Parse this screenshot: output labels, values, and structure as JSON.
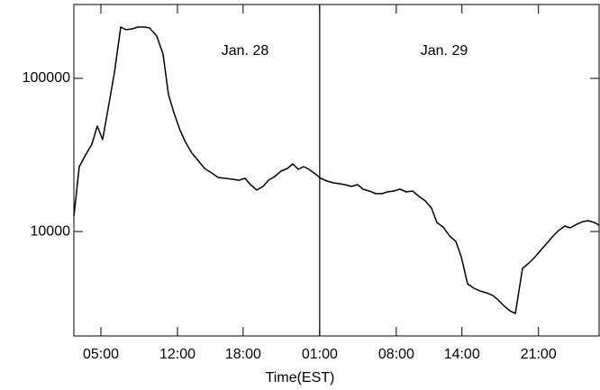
{
  "chart_data": {
    "type": "line",
    "xlabel": "Time(EST)",
    "annotations": [
      "Jan. 28",
      "Jan. 29"
    ],
    "divider_x": 25,
    "log_y": true,
    "xlim": [
      2.53,
      50.54
    ],
    "ylim": [
      2080,
      303700
    ],
    "xticks": [
      {
        "value": 5,
        "label": "05:00"
      },
      {
        "value": 12,
        "label": "12:00"
      },
      {
        "value": 18,
        "label": "18:00"
      },
      {
        "value": 25,
        "label": "01:00"
      },
      {
        "value": 32,
        "label": "08:00"
      },
      {
        "value": 38,
        "label": "14:00"
      },
      {
        "value": 45,
        "label": "21:00"
      }
    ],
    "yticks": [
      10000,
      100000
    ],
    "x": [
      2.53,
      3.02,
      3.6,
      4.18,
      4.67,
      5.16,
      5.74,
      6.24,
      6.81,
      7.31,
      7.88,
      8.38,
      8.95,
      9.45,
      10.11,
      10.68,
      11.18,
      11.67,
      12.25,
      12.74,
      13.32,
      13.89,
      14.47,
      15.13,
      15.71,
      16.36,
      17.02,
      17.6,
      18.18,
      18.67,
      19.25,
      19.82,
      20.32,
      20.89,
      21.47,
      22.05,
      22.54,
      23.04,
      23.53,
      24.02,
      24.6,
      25.09,
      25.67,
      26.25,
      26.82,
      27.32,
      27.89,
      28.47,
      28.96,
      29.54,
      30.12,
      30.69,
      31.19,
      31.76,
      32.34,
      32.92,
      33.49,
      34.07,
      34.65,
      35.22,
      35.72,
      36.29,
      36.87,
      37.45,
      37.94,
      38.52,
      39.09,
      39.67,
      40.25,
      40.82,
      41.32,
      41.89,
      42.39,
      42.88,
      43.54,
      44.12,
      44.69,
      45.19,
      45.76,
      46.34,
      46.83,
      47.41,
      47.9,
      48.48,
      49.06,
      49.55,
      50.13,
      50.54
    ],
    "series": [
      {
        "color": "#000000",
        "values": [
          12590,
          26520,
          31620,
          37210,
          48780,
          39810,
          68440,
          109900,
          216400,
          207800,
          210600,
          216400,
          216400,
          213500,
          189000,
          144100,
          78380,
          59760,
          45590,
          38230,
          32490,
          29150,
          25810,
          24120,
          22540,
          22240,
          21940,
          21640,
          22240,
          20230,
          18650,
          19690,
          21640,
          22850,
          24780,
          25810,
          27620,
          25460,
          26520,
          25460,
          23790,
          22240,
          21350,
          20780,
          20500,
          20230,
          19690,
          20230,
          18900,
          18390,
          17670,
          17670,
          18150,
          18390,
          18900,
          18150,
          18390,
          16960,
          15850,
          14220,
          11450,
          10700,
          9346,
          8616,
          6843,
          4559,
          4261,
          4090,
          3981,
          3823,
          3572,
          3249,
          3037,
          2915,
          5740,
          6223,
          6843,
          7524,
          8386,
          9346,
          10140,
          10850,
          10560,
          11140,
          11610,
          11770,
          11450,
          10990
        ]
      }
    ]
  }
}
